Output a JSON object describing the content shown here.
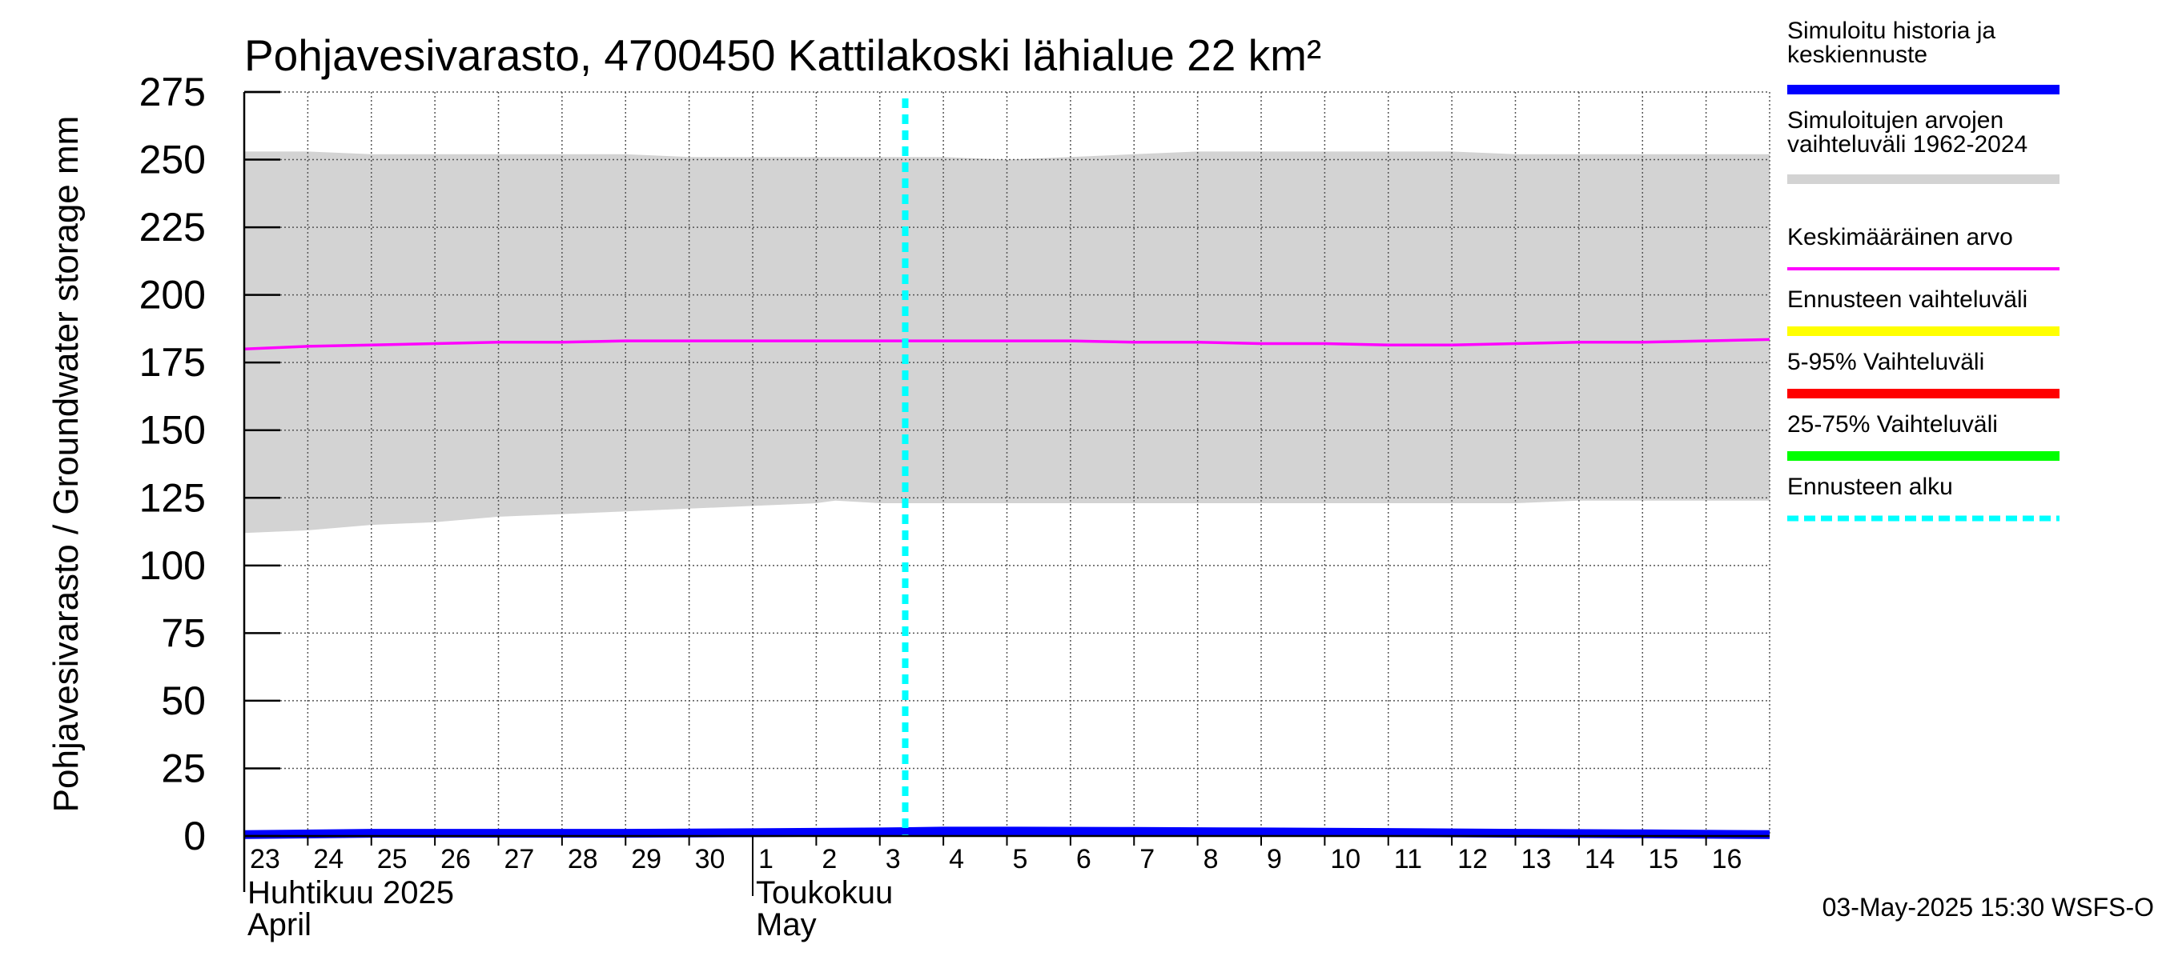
{
  "chart_data": {
    "type": "line",
    "title": "Pohjavesivarasto, 4700450 Kattilakoski lähialue 22 km²",
    "ylabel": "Pohjavesivarasto / Groundwater storage   mm",
    "ylim": [
      0,
      275
    ],
    "yticks": [
      0,
      25,
      50,
      75,
      100,
      125,
      150,
      175,
      200,
      225,
      250,
      275
    ],
    "xlim": [
      0,
      24
    ],
    "x_tick_labels": [
      "23",
      "24",
      "25",
      "26",
      "27",
      "28",
      "29",
      "30",
      "1",
      "2",
      "3",
      "4",
      "5",
      "6",
      "7",
      "8",
      "9",
      "10",
      "11",
      "12",
      "13",
      "14",
      "15",
      "16"
    ],
    "month_labels": [
      {
        "text": "Huhtikuu  2025",
        "sub": "April"
      },
      {
        "text": "Toukokuu",
        "sub": "May"
      }
    ],
    "month_boundary_day": 8,
    "grid": true,
    "forecast_start_day": 10.4,
    "series": [
      {
        "name": "Simuloitujen arvojen vaihteluväli 1962-2024",
        "type": "band",
        "color": "#d3d3d3",
        "x": [
          0,
          1,
          2,
          3,
          4,
          5,
          6,
          7,
          8,
          9,
          9.3,
          10,
          11,
          12,
          13,
          14,
          15,
          16,
          17,
          18,
          19,
          20,
          21,
          22,
          23,
          24
        ],
        "upper": [
          253,
          253,
          252,
          252,
          252,
          252,
          252,
          251,
          251,
          251,
          251,
          251,
          251,
          250,
          251,
          252,
          253,
          253,
          253,
          253,
          253,
          252,
          252,
          252,
          252,
          252
        ],
        "lower": [
          112,
          113,
          115,
          116,
          118,
          119,
          120,
          121,
          122,
          123,
          124,
          123,
          123,
          123,
          123,
          123,
          123,
          123,
          123,
          123,
          123,
          123,
          124,
          124,
          124,
          124
        ]
      },
      {
        "name": "Keskimääräinen arvo",
        "type": "line",
        "color": "#ff00ff",
        "x": [
          0,
          1,
          2,
          3,
          4,
          5,
          6,
          7,
          8,
          9,
          10,
          11,
          12,
          13,
          14,
          15,
          16,
          17,
          18,
          19,
          20,
          21,
          22,
          23,
          24
        ],
        "values": [
          180,
          181,
          181.5,
          182,
          182.5,
          182.5,
          183,
          183,
          183,
          183,
          183,
          183,
          183,
          183,
          182.5,
          182.5,
          182,
          182,
          181.5,
          181.5,
          182,
          182.5,
          182.5,
          183,
          183.5
        ]
      },
      {
        "name": "Simuloitu historia ja keskiennuste",
        "type": "line",
        "color": "#0000ff",
        "x": [
          0,
          2,
          4,
          6,
          8,
          10,
          11,
          12,
          14,
          16,
          18,
          20,
          22,
          24
        ],
        "values": [
          0.5,
          1,
          1,
          1,
          1.2,
          1.5,
          1.8,
          1.8,
          1.7,
          1.5,
          1.3,
          1.0,
          0.8,
          0.5
        ]
      }
    ],
    "legend": [
      {
        "label": "Simuloitu historia ja keskiennuste",
        "color": "#0000ff",
        "style": "solid"
      },
      {
        "label": "Simuloitujen arvojen vaihteluväli 1962-2024",
        "color": "#d3d3d3",
        "style": "solid"
      },
      {
        "label": "Keskimääräinen arvo",
        "color": "#ff00ff",
        "style": "thin"
      },
      {
        "label": "Ennusteen vaihteluväli",
        "color": "#ffff00",
        "style": "solid"
      },
      {
        "label": "5-95% Vaihteluväli",
        "color": "#ff0000",
        "style": "solid"
      },
      {
        "label": "25-75% Vaihteluväli",
        "color": "#00ff00",
        "style": "solid"
      },
      {
        "label": "Ennusteen alku",
        "color": "#00ffff",
        "style": "dashed"
      }
    ],
    "footer": "03-May-2025 15:30 WSFS-O"
  }
}
